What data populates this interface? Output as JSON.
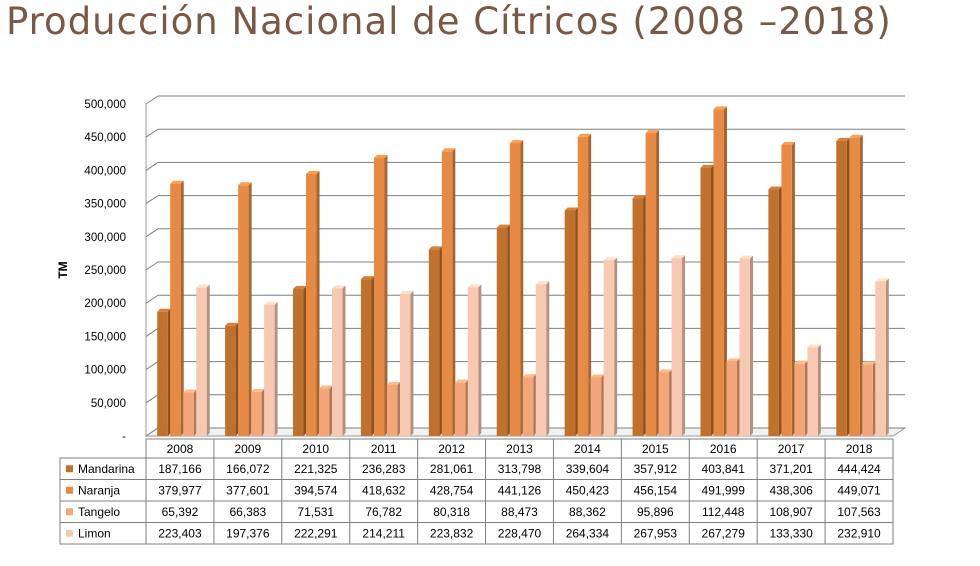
{
  "title": "Producción Nacional de Cítricos (2008 –2018)",
  "chart_data": {
    "type": "bar",
    "title": "Producción Nacional de Cítricos (2008 –2018)",
    "xlabel": "",
    "ylabel": "TM",
    "ylim": [
      0,
      500000
    ],
    "yticks": [
      "-",
      "50,000",
      "100,000",
      "150,000",
      "200,000",
      "250,000",
      "300,000",
      "350,000",
      "400,000",
      "450,000",
      "500,000"
    ],
    "grid": true,
    "legend": "data-table-left",
    "categories": [
      "2008",
      "2009",
      "2010",
      "2011",
      "2012",
      "2013",
      "2014",
      "2015",
      "2016",
      "2017",
      "2018"
    ],
    "series": [
      {
        "name": "Mandarina",
        "color": "#c0712e",
        "values": [
          187166,
          166072,
          221325,
          236283,
          281061,
          313798,
          339604,
          357912,
          403841,
          371201,
          444424
        ],
        "labels": [
          "187,166",
          "166,072",
          "221,325",
          "236,283",
          "281,061",
          "313,798",
          "339,604",
          "357,912",
          "403,841",
          "371,201",
          "444,424"
        ]
      },
      {
        "name": "Naranja",
        "color": "#e68b45",
        "values": [
          379977,
          377601,
          394574,
          418632,
          428754,
          441126,
          450423,
          456154,
          491999,
          438306,
          449071
        ],
        "labels": [
          "379,977",
          "377,601",
          "394,574",
          "418,632",
          "428,754",
          "441,126",
          "450,423",
          "456,154",
          "491,999",
          "438,306",
          "449,071"
        ]
      },
      {
        "name": "Tangelo",
        "color": "#f2a679",
        "values": [
          65392,
          66383,
          71531,
          76782,
          80318,
          88473,
          88362,
          95896,
          112448,
          108907,
          107563
        ],
        "labels": [
          "65,392",
          "66,383",
          "71,531",
          "76,782",
          "80,318",
          "88,473",
          "88,362",
          "95,896",
          "112,448",
          "108,907",
          "107,563"
        ]
      },
      {
        "name": "Limon",
        "color": "#f7c9b2",
        "values": [
          223403,
          197376,
          222291,
          214211,
          223832,
          228470,
          264334,
          267953,
          267279,
          133330,
          232910
        ],
        "labels": [
          "223,403",
          "197,376",
          "222,291",
          "214,211",
          "223,832",
          "228,470",
          "264,334",
          "267,953",
          "267,279",
          "133,330",
          "232,910"
        ]
      }
    ]
  }
}
